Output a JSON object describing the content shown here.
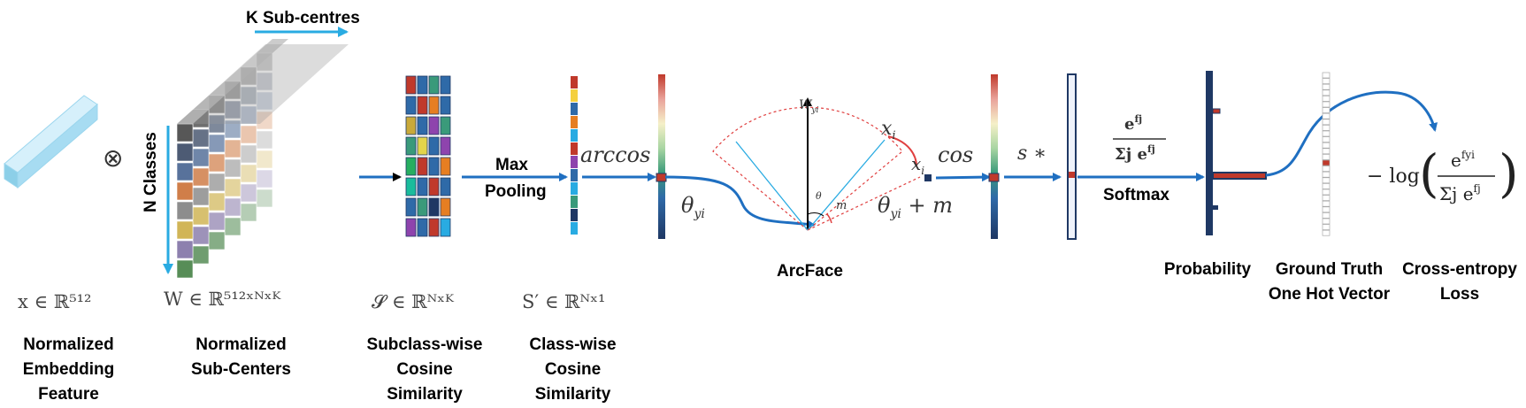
{
  "labels": {
    "k_subcentres": "K Sub-centres",
    "n_classes": "N Classes",
    "max_pooling": "Max\nPooling",
    "arccos": "arccos",
    "theta_yi": "θ",
    "theta_sub": "yi",
    "w_yi": "W",
    "w_sub": "yi",
    "x_i_top": "x",
    "x_i_right": "x",
    "i_sub": "i",
    "theta_small": "θ",
    "m_small": "m",
    "theta_plus_m": "θ",
    "plus_m": " + m",
    "cos": "cos",
    "s_times": "s ∗",
    "arcface": "ArcFace",
    "softmax": "Softmax",
    "softmax_num": "e",
    "softmax_num_sup": "fj",
    "softmax_den": "Σj e",
    "softmax_den_sup": "fj",
    "loss_prefix": "− log",
    "loss_num": "e",
    "loss_num_sup": "fyi",
    "loss_den": "Σj e",
    "loss_den_sup": "fj",
    "otimes": "⊗"
  },
  "formulas": {
    "x_embed": "x ∈ ℝ⁵¹²",
    "w_subcenters": "W ∈ ℝ⁵¹²ˣᴺˣᴷ",
    "s_cos": "𝓢 ∈ ℝᴺˣᴷ",
    "s_prime": "S′ ∈ ℝᴺˣ¹"
  },
  "captions": {
    "embedding": "Normalized\nEmbedding\nFeature",
    "subcenters": "Normalized\nSub-Centers",
    "subclass_cos": "Subclass-wise\nCosine\nSimilarity",
    "class_cos": "Class-wise\nCosine\nSimilarity",
    "probability": "Probability",
    "ground_truth": "Ground Truth\nOne Hot Vector",
    "ce_loss": "Cross-entropy\nLoss"
  },
  "colors": {
    "arrow_blue": "#1f6fc1",
    "light_blue": "#29abe2",
    "navy": "#1f3864",
    "red_marker": "#c0392b"
  }
}
